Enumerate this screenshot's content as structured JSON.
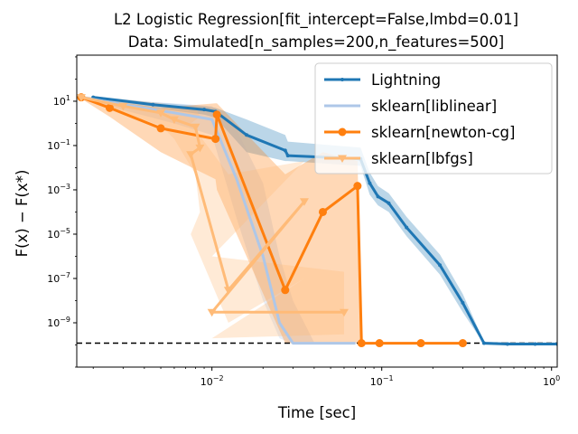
{
  "chart_data": {
    "type": "line",
    "title_line1": "L2 Logistic Regression[fit_intercept=False,lmbd=0.01]",
    "title_line2": "Data: Simulated[n_samples=200,n_features=500]",
    "xlabel": "Time [sec]",
    "ylabel": "F(x) − F(x*)",
    "x_scale": "log",
    "y_scale": "log",
    "xlim": [
      0.0016,
      1.08
    ],
    "ylim": [
      1e-11,
      1200
    ],
    "x_ticks": [
      {
        "value": 0.01,
        "base": "10",
        "exp": "−2"
      },
      {
        "value": 0.1,
        "base": "10",
        "exp": "−1"
      },
      {
        "value": 1,
        "base": "10",
        "exp": "0"
      }
    ],
    "y_ticks": [
      {
        "value": 1e-09,
        "base": "10",
        "exp": "−9"
      },
      {
        "value": 1e-07,
        "base": "10",
        "exp": "−7"
      },
      {
        "value": 1e-05,
        "base": "10",
        "exp": "−5"
      },
      {
        "value": 0.001,
        "base": "10",
        "exp": "−3"
      },
      {
        "value": 0.1,
        "base": "10",
        "exp": "−1"
      },
      {
        "value": 10,
        "base": "10",
        "exp": "1"
      }
    ],
    "reference_line": {
      "y": 1.2e-10,
      "style": "dashed",
      "color": "#000000"
    },
    "legend_position": "top-right",
    "series": [
      {
        "name": "Lightning",
        "color": "#1f77b4",
        "band_color": "#1f77b4",
        "marker": "dot",
        "x": [
          0.002,
          0.0045,
          0.009,
          0.0105,
          0.016,
          0.027,
          0.028,
          0.075,
          0.085,
          0.095,
          0.11,
          0.14,
          0.22,
          0.3,
          0.4,
          0.55,
          0.8,
          1.08
        ],
        "y": [
          15,
          7,
          4.2,
          3.4,
          0.3,
          0.06,
          0.035,
          0.025,
          0.002,
          0.0005,
          0.00025,
          2e-05,
          4e-07,
          8e-09,
          1.2e-10,
          1.1e-10,
          1.1e-10,
          1.1e-10
        ],
        "y_upper": [
          17,
          9,
          6,
          5,
          1.5,
          0.3,
          0.15,
          0.08,
          0.006,
          0.0015,
          0.0007,
          6e-05,
          1.2e-06,
          2e-08,
          1.4e-10,
          1.3e-10,
          1.3e-10,
          1.3e-10
        ],
        "y_lower": [
          13,
          5,
          2.5,
          1.8,
          0.05,
          0.02,
          0.02,
          0.012,
          0.0006,
          0.0002,
          0.0001,
          8e-06,
          1.5e-07,
          3e-09,
          1.1e-10,
          1e-10,
          1e-10,
          1e-10
        ]
      },
      {
        "name": "sklearn[liblinear]",
        "color": "#aec7e8",
        "band_color": "#aec7e8",
        "marker": "none",
        "x": [
          0.0017,
          0.003,
          0.006,
          0.01,
          0.014,
          0.02,
          0.025,
          0.03,
          0.04,
          0.05,
          0.07
        ],
        "y": [
          15,
          7,
          3,
          1.5,
          0.003,
          1e-06,
          1e-09,
          1.2e-10,
          1.2e-10,
          1.2e-10,
          1.2e-10
        ],
        "y_upper": [
          17,
          11,
          8,
          6,
          0.5,
          0.002,
          1e-06,
          1e-08,
          1.3e-10,
          1.3e-10,
          1.3e-10
        ],
        "y_lower": [
          13,
          4,
          1,
          0.3,
          5e-05,
          1e-08,
          2e-10,
          1.1e-10,
          1.1e-10,
          1.1e-10,
          1.1e-10
        ]
      },
      {
        "name": "sklearn[newton-cg]",
        "color": "#ff7f0e",
        "band_color": "#ff7f0e",
        "marker": "circle",
        "x": [
          0.0017,
          0.0025,
          0.005,
          0.0105,
          0.0107,
          0.027,
          0.045,
          0.072,
          0.076,
          0.097,
          0.17,
          0.3
        ],
        "y": [
          15,
          5,
          0.6,
          0.2,
          2.5,
          3e-08,
          0.0001,
          0.0015,
          1.2e-10,
          1.2e-10,
          1.2e-10,
          1.2e-10
        ],
        "y_upper": [
          17,
          10,
          5,
          8,
          8,
          0.005,
          0.05,
          0.02,
          1.3e-10,
          1.3e-10,
          1.3e-10,
          1.3e-10
        ],
        "y_lower": [
          13,
          2,
          0.05,
          0.003,
          0.001,
          1.2e-10,
          1.2e-10,
          1.2e-10,
          1.1e-10,
          1.1e-10,
          1.1e-10,
          1.1e-10
        ]
      },
      {
        "name": "sklearn[lbfgs]",
        "color": "#ffbb78",
        "band_color": "#ffbb78",
        "marker": "triangle-down",
        "x": [
          0.0017,
          0.003,
          0.005,
          0.006,
          0.008,
          0.0085,
          0.0075,
          0.0125,
          0.035,
          0.01,
          0.06
        ],
        "y": [
          15,
          6,
          3,
          1.5,
          0.7,
          0.08,
          0.04,
          3e-08,
          0.0003,
          3e-09,
          3e-09
        ],
        "y_upper": [
          17,
          12,
          8,
          6,
          5,
          2,
          1,
          0.005,
          0.02,
          1e-06,
          2e-07
        ],
        "y_lower": [
          13,
          3,
          0.8,
          0.2,
          0.005,
          0.0001,
          1e-05,
          1e-09,
          1e-07,
          2e-10,
          3e-10
        ]
      }
    ]
  }
}
